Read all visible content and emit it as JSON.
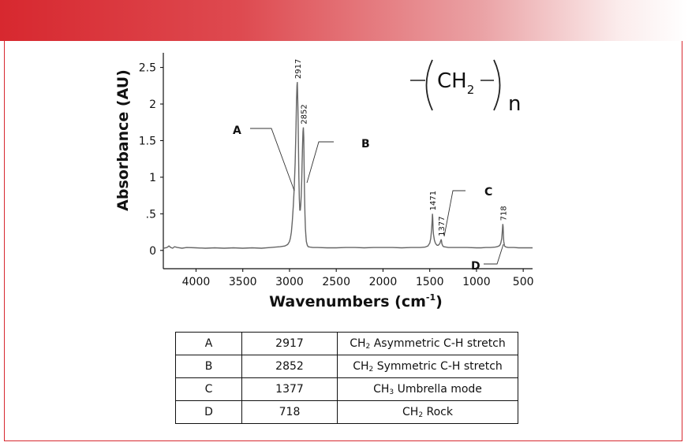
{
  "chart_data": {
    "type": "line",
    "xlabel": "Wavenumbers (cm",
    "xlabel_sup": "-1",
    "xlabel_suffix": ")",
    "ylabel": "Absorbance (AU)",
    "xlim": [
      4350,
      400
    ],
    "ylim": [
      -0.25,
      2.7
    ],
    "x_reversed": true,
    "x_ticks": [
      4000,
      3500,
      3000,
      2500,
      2000,
      1500,
      1000,
      500
    ],
    "y_ticks": [
      {
        "value": 0,
        "label": "0"
      },
      {
        "value": 0.5,
        "label": ".5"
      },
      {
        "value": 1,
        "label": "1"
      },
      {
        "value": 1.5,
        "label": "1.5"
      },
      {
        "value": 2,
        "label": "2"
      },
      {
        "value": 2.5,
        "label": "2.5"
      }
    ],
    "series": [
      {
        "color": "#666666",
        "x": [
          4350,
          4310,
          4290,
          4270,
          4250,
          4230,
          4200,
          4150,
          4100,
          4000,
          3900,
          3800,
          3700,
          3600,
          3500,
          3400,
          3300,
          3200,
          3100,
          3050,
          3020,
          3000,
          2990,
          2980,
          2970,
          2960,
          2950,
          2940,
          2930,
          2925,
          2920,
          2917,
          2914,
          2910,
          2905,
          2900,
          2895,
          2890,
          2885,
          2880,
          2875,
          2870,
          2865,
          2860,
          2856,
          2852,
          2848,
          2844,
          2840,
          2835,
          2830,
          2825,
          2820,
          2810,
          2800,
          2780,
          2750,
          2700,
          2600,
          2500,
          2400,
          2300,
          2200,
          2100,
          2000,
          1900,
          1800,
          1700,
          1600,
          1550,
          1520,
          1500,
          1490,
          1480,
          1474,
          1471,
          1468,
          1464,
          1460,
          1450,
          1440,
          1430,
          1420,
          1410,
          1400,
          1390,
          1383,
          1380,
          1377,
          1374,
          1370,
          1360,
          1350,
          1300,
          1200,
          1100,
          1000,
          950,
          900,
          850,
          800,
          780,
          760,
          750,
          740,
          730,
          725,
          721,
          718,
          715,
          712,
          708,
          700,
          690,
          680,
          660,
          640,
          600,
          550,
          500,
          450,
          400
        ],
        "y": [
          0.03,
          0.04,
          0.06,
          0.04,
          0.03,
          0.05,
          0.04,
          0.03,
          0.04,
          0.035,
          0.03,
          0.035,
          0.03,
          0.035,
          0.03,
          0.035,
          0.03,
          0.04,
          0.05,
          0.06,
          0.08,
          0.12,
          0.17,
          0.25,
          0.4,
          0.6,
          0.85,
          1.2,
          1.7,
          2.05,
          2.25,
          2.3,
          2.2,
          1.95,
          1.5,
          1.0,
          0.7,
          0.55,
          0.55,
          0.62,
          0.75,
          0.95,
          1.2,
          1.45,
          1.62,
          1.68,
          1.55,
          1.2,
          0.8,
          0.5,
          0.3,
          0.2,
          0.12,
          0.07,
          0.05,
          0.045,
          0.04,
          0.04,
          0.035,
          0.035,
          0.04,
          0.04,
          0.035,
          0.04,
          0.04,
          0.04,
          0.035,
          0.04,
          0.04,
          0.045,
          0.06,
          0.1,
          0.16,
          0.28,
          0.42,
          0.5,
          0.44,
          0.3,
          0.22,
          0.14,
          0.1,
          0.08,
          0.07,
          0.07,
          0.08,
          0.1,
          0.13,
          0.14,
          0.15,
          0.13,
          0.09,
          0.06,
          0.05,
          0.04,
          0.04,
          0.04,
          0.035,
          0.035,
          0.04,
          0.04,
          0.045,
          0.05,
          0.06,
          0.07,
          0.1,
          0.16,
          0.24,
          0.32,
          0.36,
          0.32,
          0.22,
          0.12,
          0.06,
          0.05,
          0.045,
          0.04,
          0.04,
          0.04,
          0.035,
          0.035,
          0.035,
          0.035
        ]
      }
    ],
    "peak_labels": [
      {
        "x": 2917,
        "y": 2.3,
        "label": "2917"
      },
      {
        "x": 2852,
        "y": 1.68,
        "label": "2852"
      },
      {
        "x": 1471,
        "y": 0.5,
        "label": "1471"
      },
      {
        "x": 1377,
        "y": 0.15,
        "label": "1377"
      },
      {
        "x": 718,
        "y": 0.36,
        "label": "718"
      }
    ],
    "callouts": [
      {
        "letter": "A"
      },
      {
        "letter": "B"
      },
      {
        "letter": "C"
      },
      {
        "letter": "D"
      }
    ],
    "formula": {
      "main": "CH",
      "sub": "2",
      "suffix": "n"
    }
  },
  "table": {
    "rows": [
      {
        "letter": "A",
        "wavenumber": "2917",
        "group": "CH",
        "sub": "2",
        "mode": " Asymmetric C-H stretch"
      },
      {
        "letter": "B",
        "wavenumber": "2852",
        "group": "CH",
        "sub": "2",
        "mode": " Symmetric C-H stretch"
      },
      {
        "letter": "C",
        "wavenumber": "1377",
        "group": "CH",
        "sub": "3",
        "mode": " Umbrella mode"
      },
      {
        "letter": "D",
        "wavenumber": "718",
        "group": "CH",
        "sub": "2",
        "mode": " Rock"
      }
    ]
  }
}
